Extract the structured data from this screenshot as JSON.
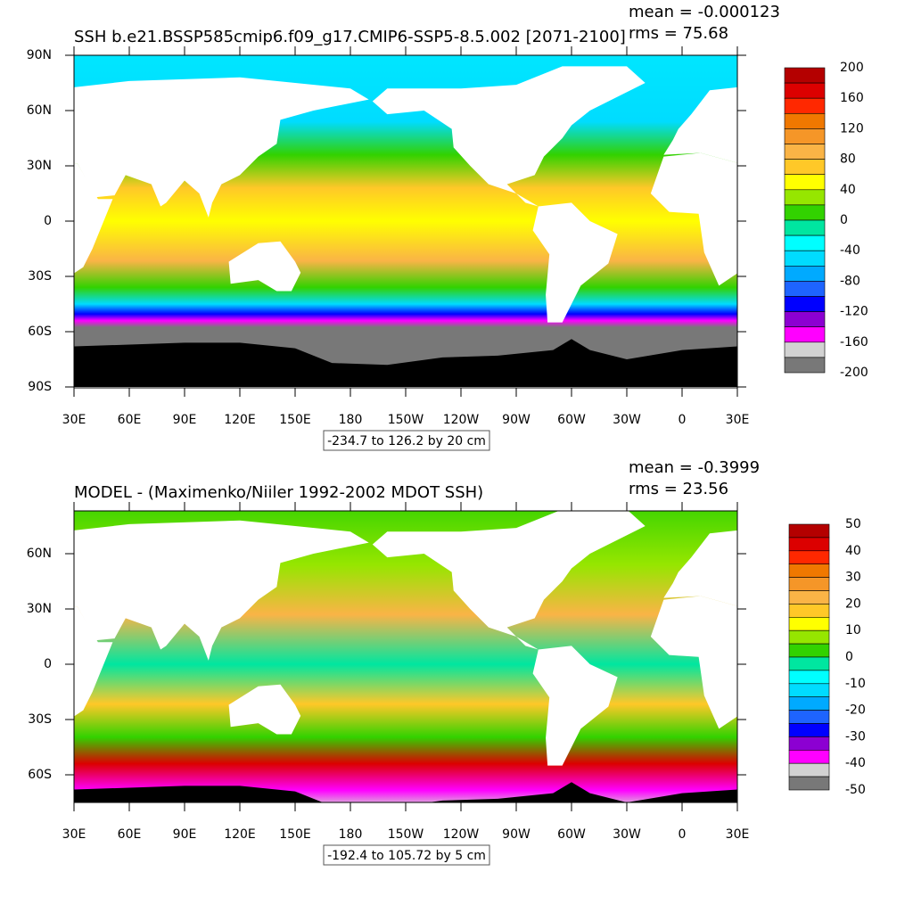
{
  "panels": [
    {
      "title": "SSH b.e21.BSSP585cmip6.f09_g17.CMIP6-SSP5-8.5.002 [2071-2100]",
      "mean": "mean = -0.000123",
      "rms": "rms = 75.68",
      "lat_labels": [
        "90N",
        "60N",
        "30N",
        "0",
        "30S",
        "60S",
        "90S"
      ],
      "lon_labels": [
        "30E",
        "60E",
        "90E",
        "120E",
        "150E",
        "180",
        "150W",
        "120W",
        "90W",
        "60W",
        "30W",
        "0",
        "30E"
      ],
      "range_label": "-234.7 to 126.2 by 20 cm",
      "colorbar": {
        "labels": [
          200,
          160,
          120,
          80,
          40,
          0,
          -40,
          -80,
          -120,
          -160,
          -200
        ],
        "colors": [
          "#b40000",
          "#dc0000",
          "#ff2800",
          "#f07800",
          "#f59628",
          "#fab446",
          "#ffc828",
          "#ffff00",
          "#96e600",
          "#32d200",
          "#00e6a0",
          "#00ffff",
          "#00dcff",
          "#00aaff",
          "#1e64ff",
          "#0000ff",
          "#8c00d2",
          "#ff00ff",
          "#d2d2d2",
          "#787878"
        ]
      }
    },
    {
      "title": "MODEL - (Maximenko/Niiler 1992-2002 MDOT SSH)",
      "mean": "mean = -0.3999",
      "rms": "rms = 23.56",
      "lat_labels": [
        "60N",
        "30N",
        "0",
        "30S",
        "60S"
      ],
      "lon_labels": [
        "30E",
        "60E",
        "90E",
        "120E",
        "150E",
        "180",
        "150W",
        "120W",
        "90W",
        "60W",
        "30W",
        "0",
        "30E"
      ],
      "range_label": "-192.4 to 105.72 by 5 cm",
      "colorbar": {
        "labels": [
          50,
          40,
          30,
          20,
          10,
          0,
          -10,
          -20,
          -30,
          -40,
          -50
        ],
        "colors": [
          "#b40000",
          "#dc0000",
          "#ff2800",
          "#f07800",
          "#f59628",
          "#fab446",
          "#ffc828",
          "#ffff00",
          "#96e600",
          "#32d200",
          "#00e6a0",
          "#00ffff",
          "#00dcff",
          "#00aaff",
          "#1e64ff",
          "#0000ff",
          "#8c00d2",
          "#ff00ff",
          "#d2d2d2",
          "#787878"
        ]
      }
    }
  ]
}
